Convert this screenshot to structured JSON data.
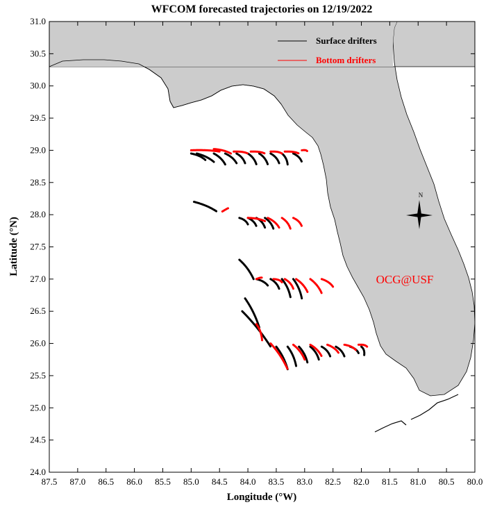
{
  "title": "WFCOM forecasted trajectories on 12/19/2022",
  "x_axis": {
    "label": "Longitude (°W)",
    "ticks": [
      "87.5",
      "87.0",
      "86.5",
      "86.0",
      "85.5",
      "85.0",
      "84.5",
      "84.0",
      "83.5",
      "83.0",
      "82.5",
      "82.0",
      "81.5",
      "81.0",
      "80.5",
      "80.0"
    ]
  },
  "y_axis": {
    "label": "Latitude (°N)",
    "ticks": [
      "24.0",
      "24.5",
      "25.0",
      "25.5",
      "26.0",
      "26.5",
      "27.0",
      "27.5",
      "28.0",
      "28.5",
      "29.0",
      "29.5",
      "30.0",
      "30.5",
      "31.0"
    ]
  },
  "legend": {
    "surface_label": "Surface drifters",
    "bottom_label": "Bottom drifters",
    "surface_color": "#000000",
    "bottom_color": "#ff0000"
  },
  "compass": {
    "north_label": "N"
  },
  "watermark": "OCG@USF",
  "colors": {
    "land": "#cccccc",
    "water": "#ffffff"
  },
  "map_extent": {
    "lon_range": [
      87.5,
      80.0
    ],
    "lat_range": [
      24.0,
      31.0
    ]
  },
  "trajectories": {
    "surface": [
      {
        "start": [
          85.0,
          28.95
        ],
        "end": [
          84.75,
          28.85
        ]
      },
      {
        "start": [
          84.9,
          28.95
        ],
        "end": [
          84.6,
          28.82
        ]
      },
      {
        "start": [
          84.6,
          28.95
        ],
        "end": [
          84.4,
          28.78
        ]
      },
      {
        "start": [
          84.4,
          28.95
        ],
        "end": [
          84.2,
          28.8
        ]
      },
      {
        "start": [
          84.2,
          28.95
        ],
        "end": [
          84.05,
          28.8
        ]
      },
      {
        "start": [
          84.0,
          28.95
        ],
        "end": [
          83.85,
          28.78
        ]
      },
      {
        "start": [
          83.8,
          28.95
        ],
        "end": [
          83.65,
          28.78
        ]
      },
      {
        "start": [
          83.6,
          28.95
        ],
        "end": [
          83.45,
          28.8
        ]
      },
      {
        "start": [
          83.4,
          28.95
        ],
        "end": [
          83.3,
          28.78
        ]
      },
      {
        "start": [
          83.2,
          28.95
        ],
        "end": [
          83.05,
          28.82
        ]
      },
      {
        "start": [
          84.95,
          28.2
        ],
        "end": [
          84.55,
          28.05
        ]
      },
      {
        "start": [
          84.15,
          27.95
        ],
        "end": [
          84.0,
          27.85
        ]
      },
      {
        "start": [
          84.0,
          27.95
        ],
        "end": [
          83.85,
          27.82
        ]
      },
      {
        "start": [
          83.85,
          27.95
        ],
        "end": [
          83.7,
          27.8
        ]
      },
      {
        "start": [
          83.7,
          27.95
        ],
        "end": [
          83.55,
          27.78
        ]
      },
      {
        "start": [
          84.15,
          27.3
        ],
        "end": [
          83.9,
          27.0
        ]
      },
      {
        "start": [
          83.85,
          27.0
        ],
        "end": [
          83.65,
          26.9
        ]
      },
      {
        "start": [
          83.6,
          27.0
        ],
        "end": [
          83.45,
          26.85
        ]
      },
      {
        "start": [
          83.4,
          27.0
        ],
        "end": [
          83.25,
          26.72
        ]
      },
      {
        "start": [
          83.2,
          27.0
        ],
        "end": [
          83.05,
          26.7
        ]
      },
      {
        "start": [
          84.05,
          26.7
        ],
        "end": [
          83.8,
          26.25
        ]
      },
      {
        "start": [
          84.1,
          26.5
        ],
        "end": [
          83.6,
          25.95
        ]
      },
      {
        "start": [
          83.5,
          25.95
        ],
        "end": [
          83.3,
          25.6
        ]
      },
      {
        "start": [
          83.3,
          25.95
        ],
        "end": [
          83.15,
          25.65
        ]
      },
      {
        "start": [
          83.1,
          25.95
        ],
        "end": [
          82.95,
          25.7
        ]
      },
      {
        "start": [
          82.9,
          25.95
        ],
        "end": [
          82.75,
          25.75
        ]
      },
      {
        "start": [
          82.7,
          25.95
        ],
        "end": [
          82.55,
          25.8
        ]
      },
      {
        "start": [
          82.45,
          25.95
        ],
        "end": [
          82.3,
          25.8
        ]
      },
      {
        "start": [
          82.2,
          25.95
        ],
        "end": [
          82.05,
          25.85
        ]
      },
      {
        "start": [
          82.0,
          25.95
        ],
        "end": [
          81.95,
          25.82
        ]
      }
    ],
    "bottom": [
      {
        "start": [
          85.0,
          29.0
        ],
        "end": [
          84.5,
          28.98
        ]
      },
      {
        "start": [
          84.6,
          29.02
        ],
        "end": [
          84.3,
          28.95
        ]
      },
      {
        "start": [
          84.25,
          28.98
        ],
        "end": [
          84.0,
          28.95
        ]
      },
      {
        "start": [
          83.95,
          28.98
        ],
        "end": [
          83.7,
          28.95
        ]
      },
      {
        "start": [
          83.6,
          28.98
        ],
        "end": [
          83.4,
          28.95
        ]
      },
      {
        "start": [
          83.35,
          28.98
        ],
        "end": [
          83.1,
          28.95
        ]
      },
      {
        "start": [
          83.05,
          29.0
        ],
        "end": [
          82.95,
          28.98
        ]
      },
      {
        "start": [
          84.45,
          28.05
        ],
        "end": [
          84.35,
          28.1
        ]
      },
      {
        "start": [
          84.0,
          27.95
        ],
        "end": [
          83.7,
          27.9
        ]
      },
      {
        "start": [
          83.65,
          27.95
        ],
        "end": [
          83.45,
          27.8
        ]
      },
      {
        "start": [
          83.4,
          27.95
        ],
        "end": [
          83.25,
          27.78
        ]
      },
      {
        "start": [
          83.2,
          27.95
        ],
        "end": [
          83.05,
          27.82
        ]
      },
      {
        "start": [
          83.85,
          27.0
        ],
        "end": [
          83.75,
          27.02
        ]
      },
      {
        "start": [
          83.55,
          27.0
        ],
        "end": [
          83.4,
          26.95
        ]
      },
      {
        "start": [
          83.35,
          27.0
        ],
        "end": [
          83.2,
          26.85
        ]
      },
      {
        "start": [
          83.15,
          27.0
        ],
        "end": [
          82.95,
          26.8
        ]
      },
      {
        "start": [
          82.9,
          27.0
        ],
        "end": [
          82.7,
          26.78
        ]
      },
      {
        "start": [
          82.7,
          27.0
        ],
        "end": [
          82.5,
          26.88
        ]
      },
      {
        "start": [
          83.85,
          26.3
        ],
        "end": [
          83.75,
          26.05
        ]
      },
      {
        "start": [
          83.6,
          26.0
        ],
        "end": [
          83.3,
          25.6
        ]
      },
      {
        "start": [
          83.2,
          25.98
        ],
        "end": [
          83.0,
          25.75
        ]
      },
      {
        "start": [
          82.9,
          25.98
        ],
        "end": [
          82.7,
          25.8
        ]
      },
      {
        "start": [
          82.6,
          25.98
        ],
        "end": [
          82.4,
          25.85
        ]
      },
      {
        "start": [
          82.3,
          25.98
        ],
        "end": [
          82.1,
          25.9
        ]
      },
      {
        "start": [
          82.05,
          25.98
        ],
        "end": [
          81.9,
          25.95
        ]
      }
    ]
  }
}
